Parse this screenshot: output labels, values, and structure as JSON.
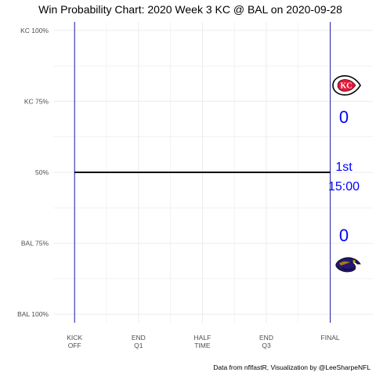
{
  "chart_data": {
    "type": "line",
    "title": "Win Probability Chart: 2020 Week 3 KC @ BAL on 2020-09-28",
    "caption": "Data from nflfastR, Visualization by @LeeSharpeNFL",
    "y_ticks": [
      {
        "value": 1.0,
        "label": "KC 100%"
      },
      {
        "value": 0.75,
        "label": "KC 75%"
      },
      {
        "value": 0.5,
        "label": "50%"
      },
      {
        "value": 0.25,
        "label": "BAL 75%"
      },
      {
        "value": 0.0,
        "label": "BAL 100%"
      }
    ],
    "x_ticks": [
      {
        "value": 0,
        "lines": [
          "KICK",
          "OFF"
        ]
      },
      {
        "value": 15,
        "lines": [
          "END",
          "Q1"
        ]
      },
      {
        "value": 30,
        "lines": [
          "HALF",
          "TIME"
        ]
      },
      {
        "value": 45,
        "lines": [
          "END",
          "Q3"
        ]
      },
      {
        "value": 60,
        "lines": [
          "FINAL"
        ]
      }
    ],
    "xlim": [
      -5,
      70
    ],
    "ylim": [
      -0.03,
      1.03
    ],
    "series": [
      {
        "points": [
          [
            0,
            0.5
          ],
          [
            60,
            0.5
          ]
        ],
        "color": "#000000"
      }
    ],
    "vlines": [
      0,
      60
    ],
    "vline_color": "#1a1aa6",
    "grid": true,
    "annotations": {
      "home_score": "0",
      "away_score": "0",
      "quarter": "1st",
      "clock": "15:00",
      "text_color": "#0000ff"
    },
    "logos": {
      "top": "kc-chiefs-logo",
      "bottom": "bal-ravens-logo"
    }
  }
}
